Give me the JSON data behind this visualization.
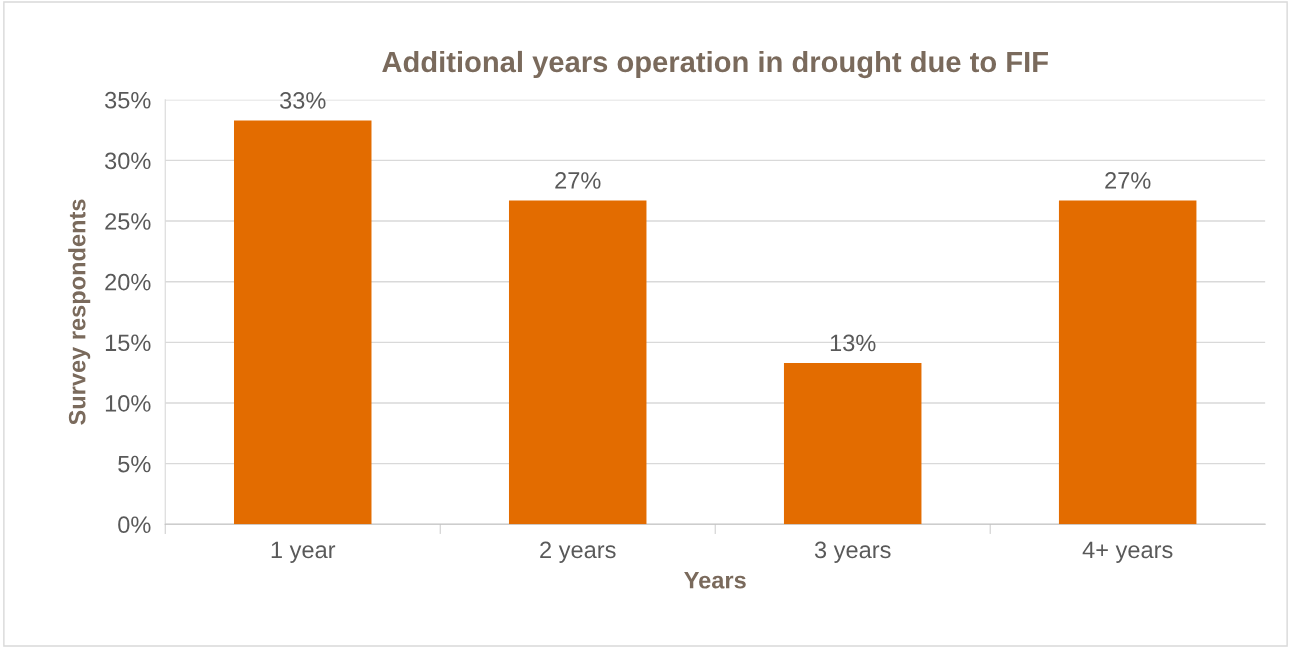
{
  "chart_data": {
    "type": "bar",
    "title": "Additional years operation in drought due to FIF",
    "xlabel": "Years",
    "ylabel": "Survey respondents",
    "categories": [
      "1 year",
      "2 years",
      "3 years",
      "4+ years"
    ],
    "values": [
      33.3,
      26.7,
      13.3,
      26.7
    ],
    "value_labels": [
      "33%",
      "27%",
      "13%",
      "27%"
    ],
    "color": "#e36c00",
    "ylim": [
      0,
      35
    ],
    "yticks": [
      {
        "value": 0,
        "label": "0%"
      },
      {
        "value": 5,
        "label": "5%"
      },
      {
        "value": 10,
        "label": "10%"
      },
      {
        "value": 15,
        "label": "15%"
      },
      {
        "value": 20,
        "label": "20%"
      },
      {
        "value": 25,
        "label": "25%"
      },
      {
        "value": 30,
        "label": "30%"
      },
      {
        "value": 35,
        "label": "35%"
      }
    ],
    "grid": "y",
    "legend": false
  }
}
